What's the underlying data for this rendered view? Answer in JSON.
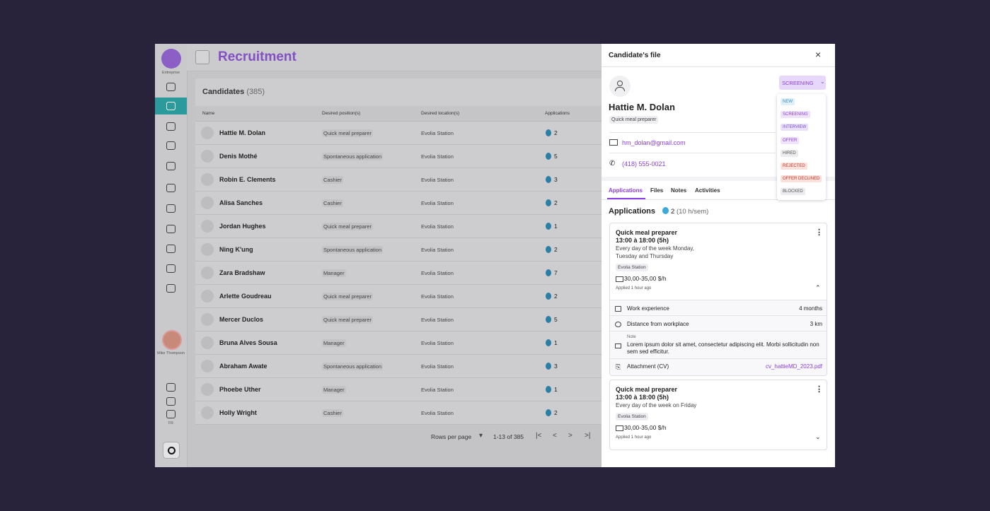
{
  "sidebar": {
    "company": "Entreprise",
    "user": "Mike Thompson",
    "lang": "FR"
  },
  "header": {
    "title": "Recruitment"
  },
  "candidates": {
    "title": "Candidates",
    "count": "(385)",
    "columns": [
      "Name",
      "Desired position(s)",
      "Desired location(s)",
      "Applications"
    ],
    "rows": [
      [
        "Hattie M. Dolan",
        "Quick meal preparer",
        "Evolia Station",
        "2"
      ],
      [
        "Denis Mothé",
        "Spontaneous application",
        "Evolia Station",
        "5"
      ],
      [
        "Robin E. Clements",
        "Cashier",
        "Evolia Station",
        "3"
      ],
      [
        "Alisa Sanches",
        "Cashier",
        "Evolia Station",
        "2"
      ],
      [
        "Jordan Hughes",
        "Quick meal preparer",
        "Evolia Station",
        "1"
      ],
      [
        "Ning K'ung",
        "Spontaneous application",
        "Evolia Station",
        "2"
      ],
      [
        "Zara Bradshaw",
        "Manager",
        "Evolia Station",
        "7"
      ],
      [
        "Arlette Goudreau",
        "Quick meal preparer",
        "Evolia Station",
        "2"
      ],
      [
        "Mercer Duclos",
        "Quick meal preparer",
        "Evolia Station",
        "5"
      ],
      [
        "Bruna Alves Sousa",
        "Manager",
        "Evolia Station",
        "1"
      ],
      [
        "Abraham Awate",
        "Spontaneous application",
        "Evolia Station",
        "3"
      ],
      [
        "Phoebe Uther",
        "Manager",
        "Evolia Station",
        "1"
      ],
      [
        "Holly Wright",
        "Cashier",
        "Evolia Station",
        "2"
      ]
    ]
  },
  "pagination": {
    "rows_per_page": "Rows per page",
    "range": "1-13 of 385"
  },
  "panel": {
    "title": "Candidate's file",
    "name": "Hattie M. Dolan",
    "position": "Quick meal preparer",
    "email": "hm_dolan@gmail.com",
    "phone": "(418) 555-0021",
    "status": "SCREENING",
    "status_options": [
      "NEW",
      "SCREENING",
      "INTERVIEW",
      "OFFER",
      "HIRED",
      "REJECTED",
      "OFFER DECLINED",
      "BLOCKED"
    ],
    "tabs": [
      "Applications",
      "Files",
      "Notes",
      "Activities"
    ],
    "applications_title": "Applications",
    "applications_count": "2",
    "applications_hours": "(10 h/sem)",
    "cards": [
      {
        "title": "Quick meal preparer",
        "time": "13:00 à 18:00 (5h)",
        "days": "Every day of the week Monday, Tuesday and Thursday",
        "location": "Evolia Station",
        "pay": "30,00-35,00 $/h",
        "applied": "Applied 1 hour ago",
        "details": [
          {
            "label": "Work experience",
            "value": "4 months"
          },
          {
            "label": "Distance from workplace",
            "value": "3 km"
          }
        ],
        "note_label": "Note",
        "note": "Lorem ipsum dolor sit amet, consectetur adipiscing elit. Morbi sollicitudin non sem sed efficitur.",
        "attachment_label": "Attachment (CV)",
        "attachment": "cv_hattieMD_2023.pdf"
      },
      {
        "title": "Quick meal preparer",
        "time": "13:00 à 18:00 (5h)",
        "days": "Every day of the week on Friday",
        "location": "Evolia Station",
        "pay": "30,00-35,00 $/h",
        "applied": "Applied 1 hour ago"
      }
    ]
  }
}
